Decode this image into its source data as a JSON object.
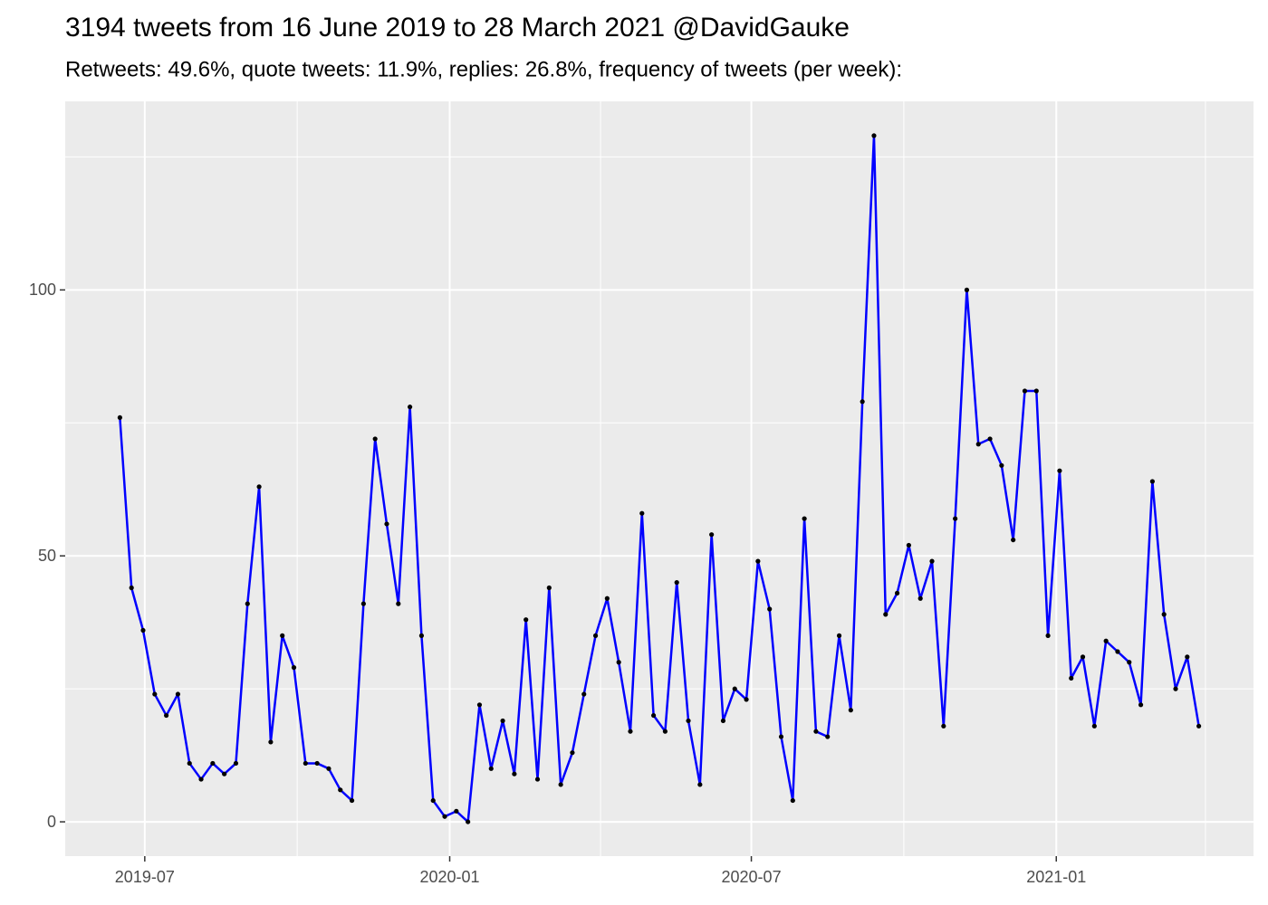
{
  "chart_data": {
    "type": "line",
    "title": "3194 tweets from 16 June 2019 to 28 March 2021 @DavidGauke",
    "subtitle": "Retweets: 49.6%, quote tweets: 11.9%, replies: 26.8%, frequency of tweets (per week):",
    "x": [
      "2019-06-16",
      "2019-06-23",
      "2019-06-30",
      "2019-07-07",
      "2019-07-14",
      "2019-07-21",
      "2019-07-28",
      "2019-08-04",
      "2019-08-11",
      "2019-08-18",
      "2019-08-25",
      "2019-09-01",
      "2019-09-08",
      "2019-09-15",
      "2019-09-22",
      "2019-09-29",
      "2019-10-06",
      "2019-10-13",
      "2019-10-20",
      "2019-10-27",
      "2019-11-03",
      "2019-11-10",
      "2019-11-17",
      "2019-11-24",
      "2019-12-01",
      "2019-12-08",
      "2019-12-15",
      "2019-12-22",
      "2019-12-29",
      "2020-01-05",
      "2020-01-12",
      "2020-01-19",
      "2020-01-26",
      "2020-02-02",
      "2020-02-09",
      "2020-02-16",
      "2020-02-23",
      "2020-03-01",
      "2020-03-08",
      "2020-03-15",
      "2020-03-22",
      "2020-03-29",
      "2020-04-05",
      "2020-04-12",
      "2020-04-19",
      "2020-04-26",
      "2020-05-03",
      "2020-05-10",
      "2020-05-17",
      "2020-05-24",
      "2020-05-31",
      "2020-06-07",
      "2020-06-14",
      "2020-06-21",
      "2020-06-28",
      "2020-07-05",
      "2020-07-12",
      "2020-07-19",
      "2020-07-26",
      "2020-08-02",
      "2020-08-09",
      "2020-08-16",
      "2020-08-23",
      "2020-08-30",
      "2020-09-06",
      "2020-09-13",
      "2020-09-20",
      "2020-09-27",
      "2020-10-04",
      "2020-10-11",
      "2020-10-18",
      "2020-10-25",
      "2020-11-01",
      "2020-11-08",
      "2020-11-15",
      "2020-11-22",
      "2020-11-29",
      "2020-12-06",
      "2020-12-13",
      "2020-12-20",
      "2020-12-27",
      "2021-01-03",
      "2021-01-10",
      "2021-01-17",
      "2021-01-24",
      "2021-01-31",
      "2021-02-07",
      "2021-02-14",
      "2021-02-21",
      "2021-02-28",
      "2021-03-07",
      "2021-03-14",
      "2021-03-21",
      "2021-03-28"
    ],
    "values": [
      76,
      44,
      36,
      24,
      20,
      24,
      11,
      8,
      11,
      9,
      11,
      41,
      63,
      15,
      35,
      29,
      11,
      11,
      10,
      6,
      4,
      41,
      72,
      56,
      41,
      78,
      35,
      4,
      1,
      2,
      0,
      22,
      10,
      19,
      9,
      38,
      8,
      44,
      7,
      13,
      24,
      35,
      42,
      30,
      17,
      58,
      20,
      17,
      45,
      19,
      7,
      54,
      19,
      25,
      23,
      49,
      40,
      16,
      4,
      57,
      17,
      16,
      35,
      21,
      79,
      129,
      39,
      43,
      52,
      42,
      49,
      18,
      57,
      100,
      71,
      72,
      67,
      53,
      81,
      81,
      35,
      66,
      27,
      31,
      18,
      34,
      32,
      30,
      22,
      64,
      39,
      25,
      31,
      18
    ],
    "color": "#0000ff",
    "point_color": "#000000",
    "xlim": [
      "2019-05-14",
      "2021-04-30"
    ],
    "xticks": [
      "2019-07",
      "2020-01",
      "2020-07",
      "2021-01"
    ],
    "minor_xticks": [
      "2019-10",
      "2020-04",
      "2020-10",
      "2021-04"
    ],
    "ylim": [
      -6.45,
      135.45
    ],
    "yticks": [
      0,
      50,
      100
    ],
    "minor_yticks": [
      25,
      75,
      125
    ],
    "grid": true
  }
}
